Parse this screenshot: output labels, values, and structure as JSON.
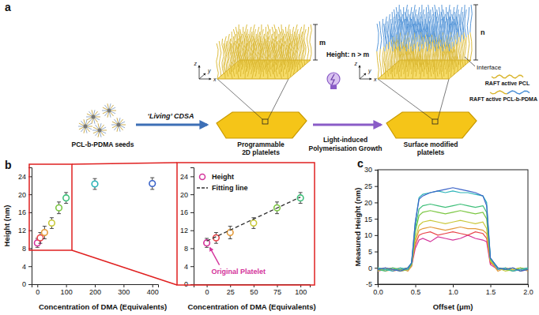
{
  "diagram": {
    "panel_label": "a",
    "seeds_label": "PCL-b-PDMA seeds",
    "step1": "‘Living’ CDSA",
    "platelet1": [
      "Programmable",
      "2D platelets"
    ],
    "step2": [
      "Light-induced",
      "Polymerisation Growth"
    ],
    "platelet2": [
      "Surface modified",
      "platelets"
    ],
    "height_note": "Height: n > m",
    "brush1_height": "m",
    "brush2_height": "n",
    "interface": "Interface",
    "axes": [
      "x",
      "y",
      "z"
    ],
    "chain_legend": [
      {
        "label": "RAFT active PCL"
      },
      {
        "label": "RAFT active PCL-b-PDMA"
      }
    ]
  },
  "chart_data": [
    {
      "type": "scatter",
      "panel_label": "b",
      "x_label": "Concentration of DMA (Equivalents)",
      "y_label": "Height (nm)",
      "x": [
        0,
        10,
        25,
        50,
        75,
        100,
        200,
        400
      ],
      "values": [
        9.2,
        10.3,
        11.5,
        13.6,
        17.0,
        19.2,
        22.3,
        22.4
      ],
      "error": [
        1.0,
        1.2,
        1.4,
        1.2,
        1.3,
        1.2,
        1.2,
        1.3
      ],
      "colors": [
        "#d4339b",
        "#e8454a",
        "#e39a3a",
        "#c9c83a",
        "#7cc743",
        "#3fbf7a",
        "#2ab3b8",
        "#3a63c8"
      ],
      "marker": "open-circle",
      "xlim": [
        -20,
        420
      ],
      "xticks": [
        0,
        100,
        200,
        300,
        400
      ],
      "ylim": [
        0,
        26
      ],
      "yticks": [
        0,
        4,
        8,
        12,
        16,
        20,
        24
      ]
    },
    {
      "type": "scatter",
      "x_label": "Concentration of DMA (Equivalents)",
      "xlim": [
        -14,
        110
      ],
      "xticks": [
        0,
        25,
        50,
        75,
        100
      ],
      "ylim": [
        0,
        26
      ],
      "yticks": [
        0,
        4,
        8,
        12,
        16,
        20,
        24
      ],
      "legend": "upper left",
      "series": [
        {
          "name": "Height",
          "type": "scatter",
          "marker": "open-circle",
          "color": "#d4339b",
          "x": [
            0,
            10,
            25,
            50,
            75,
            100
          ],
          "values": [
            9.2,
            10.3,
            11.5,
            13.6,
            17.0,
            19.2
          ],
          "error": [
            1.0,
            1.2,
            1.4,
            1.2,
            1.3,
            1.2
          ],
          "colors": [
            "#d4339b",
            "#e8454a",
            "#e39a3a",
            "#c9c83a",
            "#7cc743",
            "#3fbf7a"
          ]
        },
        {
          "name": "Fitting line",
          "type": "line",
          "line_style": "dashed",
          "color": "#333333",
          "x": [
            0,
            100
          ],
          "values": [
            9.6,
            19.4
          ]
        }
      ],
      "annotations": [
        {
          "text": "Original Platelet",
          "x": 0,
          "y": 9.2,
          "color": "#d4339b"
        }
      ]
    },
    {
      "type": "line",
      "panel_label": "c",
      "x_label": "Offset (μm)",
      "y_label": "Measured Height (nm)",
      "x": [
        0,
        0.1,
        0.2,
        0.3,
        0.4,
        0.45,
        0.5,
        0.55,
        0.6,
        0.7,
        0.8,
        0.9,
        1.0,
        1.1,
        1.2,
        1.3,
        1.4,
        1.45,
        1.5,
        1.6,
        1.7,
        1.8,
        1.9,
        2.0
      ],
      "xlim": [
        0,
        2
      ],
      "xticks": [
        {
          "value": 0,
          "label": "0.0"
        },
        {
          "value": 0.5,
          "label": "0.5"
        },
        {
          "value": 1,
          "label": "1.0"
        },
        {
          "value": 1.5,
          "label": "1.5"
        },
        {
          "value": 2,
          "label": "2.0"
        }
      ],
      "ylim": [
        -5,
        30
      ],
      "yticks": [
        -5,
        0,
        5,
        10,
        15,
        20,
        25,
        30
      ],
      "series": [
        {
          "color": "#d4339b",
          "values": [
            -1,
            -0.5,
            0,
            -1,
            -0.5,
            0.5,
            6,
            8.5,
            9,
            8,
            9.5,
            9,
            8.5,
            9,
            10,
            9,
            8.5,
            8,
            1,
            -0.5,
            0,
            -1,
            -0.5,
            0
          ]
        },
        {
          "color": "#e8454a",
          "values": [
            -0.5,
            0,
            -1,
            -0.5,
            0,
            1,
            7,
            10,
            10.5,
            11,
            10,
            10.5,
            11,
            10.5,
            10,
            11,
            10.5,
            9,
            1.5,
            0,
            -0.5,
            0,
            -1,
            -0.5
          ]
        },
        {
          "color": "#e39a3a",
          "values": [
            0,
            -1,
            -0.5,
            0,
            -1,
            0.5,
            8,
            11.5,
            12,
            12.5,
            12,
            11.5,
            12,
            12.5,
            12,
            12,
            11.5,
            10.5,
            2,
            -1,
            0,
            -0.5,
            0,
            -1
          ]
        },
        {
          "color": "#c9c83a",
          "values": [
            -1,
            0,
            -0.5,
            -1,
            0,
            1,
            9,
            13,
            14,
            14.5,
            14,
            13.5,
            14,
            14.5,
            14,
            13.5,
            14,
            12,
            2,
            0,
            -1,
            -0.5,
            0,
            -0.5
          ]
        },
        {
          "color": "#7cc743",
          "values": [
            0,
            -0.5,
            0,
            -1,
            -0.5,
            1,
            11,
            16,
            17,
            17.5,
            17,
            16.5,
            17,
            17.5,
            17,
            16.5,
            17,
            15,
            2.5,
            0,
            -0.5,
            -1,
            0,
            -0.5
          ]
        },
        {
          "color": "#3fbf7a",
          "values": [
            -0.5,
            -1,
            0,
            -0.5,
            0,
            1.5,
            12,
            18,
            19,
            19.5,
            19,
            18.5,
            19,
            19.5,
            19,
            18.5,
            19,
            17,
            3,
            0,
            -0.5,
            0,
            -1,
            0
          ]
        },
        {
          "color": "#2ab3b8",
          "values": [
            0,
            -0.5,
            -1,
            0,
            -0.5,
            1.5,
            14,
            21.5,
            22.5,
            23,
            23.5,
            23,
            23.5,
            23,
            23,
            22.5,
            22,
            20,
            3,
            -0.5,
            0,
            -1,
            -0.5,
            0
          ]
        },
        {
          "color": "#3a63c8",
          "values": [
            -0.5,
            0,
            -0.5,
            -1,
            0,
            1.5,
            14,
            21,
            22,
            23,
            23.5,
            24,
            24.5,
            24,
            23.5,
            23,
            22,
            19,
            3,
            0,
            -0.5,
            0,
            -1,
            -0.5
          ]
        }
      ]
    }
  ]
}
